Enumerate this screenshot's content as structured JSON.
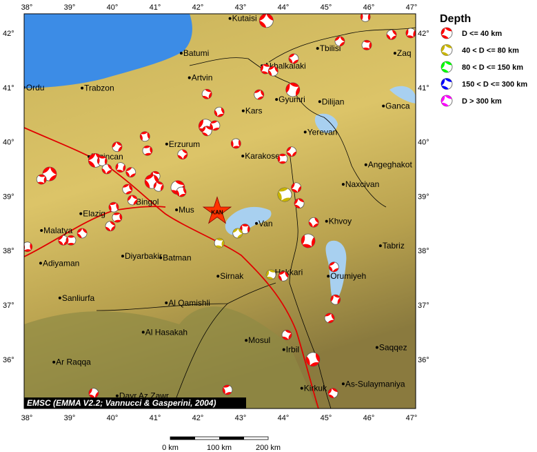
{
  "legend": {
    "title": "Depth",
    "items": [
      {
        "label": "D <= 40 km",
        "color": "#ff0000"
      },
      {
        "label": "40 < D <= 80 km",
        "color": "#c8b400"
      },
      {
        "label": "80 < D <= 150 km",
        "color": "#00ff00"
      },
      {
        "label": "150 < D <= 300 km",
        "color": "#0000ff"
      },
      {
        "label": "D > 300 km",
        "color": "#ff00ff"
      }
    ]
  },
  "credit": "EMSC (EMMA V2.2; Vannucci & Gasperini, 2004)",
  "lon_ticks": [
    "38°",
    "39°",
    "40°",
    "41°",
    "42°",
    "43°",
    "44°",
    "45°",
    "46°",
    "47°"
  ],
  "lat_ticks": [
    "42°",
    "41°",
    "40°",
    "39°",
    "38°",
    "37°",
    "36°"
  ],
  "scale_bar": {
    "labels": [
      "0 km",
      "100 km",
      "200 km"
    ]
  },
  "epicenter": {
    "label": "KAN",
    "lon": 42.5,
    "lat": 38.72,
    "color": "#ff3300"
  },
  "cities": [
    {
      "name": "Kutaisi",
      "lon": 42.8,
      "lat": 42.27
    },
    {
      "name": "Batumi",
      "lon": 41.66,
      "lat": 41.63
    },
    {
      "name": "Artvin",
      "lon": 41.85,
      "lat": 41.18
    },
    {
      "name": "Akhalkalaki",
      "lon": 43.55,
      "lat": 41.4
    },
    {
      "name": "Tbilisi",
      "lon": 44.85,
      "lat": 41.72
    },
    {
      "name": "Zaq",
      "lon": 46.66,
      "lat": 41.63
    },
    {
      "name": "Ordu",
      "lon": 37.98,
      "lat": 41.0
    },
    {
      "name": "Trabzon",
      "lon": 39.34,
      "lat": 40.99
    },
    {
      "name": "Kars",
      "lon": 43.11,
      "lat": 40.57
    },
    {
      "name": "Gyumri",
      "lon": 43.89,
      "lat": 40.78
    },
    {
      "name": "Dilijan",
      "lon": 44.9,
      "lat": 40.74
    },
    {
      "name": "Ganca",
      "lon": 46.39,
      "lat": 40.66
    },
    {
      "name": "Yerevan",
      "lon": 44.56,
      "lat": 40.18
    },
    {
      "name": "Erzurum",
      "lon": 41.32,
      "lat": 39.96
    },
    {
      "name": "Erzincan",
      "lon": 39.5,
      "lat": 39.73
    },
    {
      "name": "Karakose",
      "lon": 43.1,
      "lat": 39.74
    },
    {
      "name": "Angeghakot",
      "lon": 45.98,
      "lat": 39.58
    },
    {
      "name": "Naxcivan",
      "lon": 45.45,
      "lat": 39.22
    },
    {
      "name": "Elazig",
      "lon": 39.31,
      "lat": 38.68
    },
    {
      "name": "Bingol",
      "lon": 40.55,
      "lat": 38.9
    },
    {
      "name": "Mus",
      "lon": 41.55,
      "lat": 38.75
    },
    {
      "name": "Van",
      "lon": 43.42,
      "lat": 38.5
    },
    {
      "name": "Khvoy",
      "lon": 45.06,
      "lat": 38.54
    },
    {
      "name": "Malatya",
      "lon": 38.39,
      "lat": 38.37
    },
    {
      "name": "Tabriz",
      "lon": 46.32,
      "lat": 38.09
    },
    {
      "name": "Adiyaman",
      "lon": 38.37,
      "lat": 37.77
    },
    {
      "name": "Diyarbakir",
      "lon": 40.29,
      "lat": 37.9
    },
    {
      "name": "Batman",
      "lon": 41.18,
      "lat": 37.87
    },
    {
      "name": "Sirnak",
      "lon": 42.52,
      "lat": 37.53
    },
    {
      "name": "Hakkari",
      "lon": 43.8,
      "lat": 37.6
    },
    {
      "name": "Orumiyeh",
      "lon": 45.1,
      "lat": 37.53
    },
    {
      "name": "Sanliurfa",
      "lon": 38.82,
      "lat": 37.13
    },
    {
      "name": "Al Qamishli",
      "lon": 41.31,
      "lat": 37.04
    },
    {
      "name": "Al Hasakah",
      "lon": 40.77,
      "lat": 36.5
    },
    {
      "name": "Mosul",
      "lon": 43.18,
      "lat": 36.35
    },
    {
      "name": "Irbil",
      "lon": 44.06,
      "lat": 36.18
    },
    {
      "name": "Saqqez",
      "lon": 46.24,
      "lat": 36.22
    },
    {
      "name": "Ar Raqqa",
      "lon": 38.68,
      "lat": 35.95
    },
    {
      "name": "As-Sulaymaniya",
      "lon": 45.45,
      "lat": 35.55
    },
    {
      "name": "Kirkuk",
      "lon": 44.48,
      "lat": 35.47
    },
    {
      "name": "Dayr Az Zawr",
      "lon": 40.16,
      "lat": 35.33
    }
  ],
  "mechanisms": [
    {
      "lon": 43.65,
      "lat": 42.23,
      "depth": 0,
      "big": true
    },
    {
      "lon": 45.97,
      "lat": 42.3,
      "depth": 0
    },
    {
      "lon": 45.37,
      "lat": 41.85,
      "depth": 0
    },
    {
      "lon": 46.0,
      "lat": 41.78,
      "depth": 0
    },
    {
      "lon": 46.58,
      "lat": 41.97,
      "depth": 0
    },
    {
      "lon": 47.03,
      "lat": 42.0,
      "depth": 0
    },
    {
      "lon": 44.29,
      "lat": 41.53,
      "depth": 0
    },
    {
      "lon": 43.63,
      "lat": 41.34,
      "depth": 0
    },
    {
      "lon": 43.81,
      "lat": 41.3,
      "depth": 0
    },
    {
      "lon": 44.27,
      "lat": 40.96,
      "depth": 0,
      "big": true
    },
    {
      "lon": 43.48,
      "lat": 40.87,
      "depth": 0
    },
    {
      "lon": 42.26,
      "lat": 40.88,
      "depth": 0
    },
    {
      "lon": 42.55,
      "lat": 40.55,
      "depth": 0
    },
    {
      "lon": 42.23,
      "lat": 40.29,
      "depth": 0,
      "big": true
    },
    {
      "lon": 42.45,
      "lat": 40.3,
      "depth": 0
    },
    {
      "lon": 42.26,
      "lat": 40.2,
      "depth": 0
    },
    {
      "lon": 40.81,
      "lat": 40.1,
      "depth": 0
    },
    {
      "lon": 40.16,
      "lat": 39.91,
      "depth": 0
    },
    {
      "lon": 40.87,
      "lat": 39.84,
      "depth": 0
    },
    {
      "lon": 41.69,
      "lat": 39.77,
      "depth": 0
    },
    {
      "lon": 42.94,
      "lat": 39.97,
      "depth": 0
    },
    {
      "lon": 44.24,
      "lat": 39.82,
      "depth": 0
    },
    {
      "lon": 44.03,
      "lat": 39.69,
      "depth": 0
    },
    {
      "lon": 39.65,
      "lat": 39.66,
      "depth": 0,
      "big": true
    },
    {
      "lon": 39.81,
      "lat": 39.65,
      "depth": 0
    },
    {
      "lon": 38.58,
      "lat": 39.41,
      "depth": 0,
      "big": true
    },
    {
      "lon": 38.39,
      "lat": 39.31,
      "depth": 0
    },
    {
      "lon": 39.92,
      "lat": 39.5,
      "depth": 0
    },
    {
      "lon": 40.24,
      "lat": 39.53,
      "depth": 0
    },
    {
      "lon": 40.48,
      "lat": 39.44,
      "depth": 0
    },
    {
      "lon": 41.05,
      "lat": 39.37,
      "depth": 0
    },
    {
      "lon": 40.97,
      "lat": 39.27,
      "depth": 0,
      "big": true
    },
    {
      "lon": 41.13,
      "lat": 39.18,
      "depth": 0
    },
    {
      "lon": 40.4,
      "lat": 39.13,
      "depth": 0
    },
    {
      "lon": 41.58,
      "lat": 39.16,
      "depth": 0,
      "big": true
    },
    {
      "lon": 41.66,
      "lat": 39.08,
      "depth": 0
    },
    {
      "lon": 44.35,
      "lat": 39.16,
      "depth": 0
    },
    {
      "lon": 44.08,
      "lat": 39.03,
      "depth": 1,
      "big": true
    },
    {
      "lon": 44.42,
      "lat": 38.87,
      "depth": 0
    },
    {
      "lon": 40.08,
      "lat": 38.8,
      "depth": 0
    },
    {
      "lon": 40.52,
      "lat": 38.93,
      "depth": 0
    },
    {
      "lon": 40.16,
      "lat": 38.61,
      "depth": 0
    },
    {
      "lon": 40.0,
      "lat": 38.45,
      "depth": 0
    },
    {
      "lon": 38.06,
      "lat": 38.07,
      "depth": 0
    },
    {
      "lon": 38.9,
      "lat": 38.19,
      "depth": 0
    },
    {
      "lon": 39.08,
      "lat": 38.19,
      "depth": 0
    },
    {
      "lon": 39.34,
      "lat": 38.32,
      "depth": 0
    },
    {
      "lon": 43.15,
      "lat": 38.4,
      "depth": 0
    },
    {
      "lon": 42.98,
      "lat": 38.32,
      "depth": 1
    },
    {
      "lon": 42.55,
      "lat": 38.14,
      "depth": 1
    },
    {
      "lon": 44.76,
      "lat": 38.52,
      "depth": 0
    },
    {
      "lon": 44.63,
      "lat": 38.18,
      "depth": 0,
      "big": true
    },
    {
      "lon": 45.23,
      "lat": 37.7,
      "depth": 0
    },
    {
      "lon": 43.76,
      "lat": 37.56,
      "depth": 1
    },
    {
      "lon": 44.05,
      "lat": 37.53,
      "depth": 0
    },
    {
      "lon": 45.27,
      "lat": 37.1,
      "depth": 0
    },
    {
      "lon": 45.13,
      "lat": 36.76,
      "depth": 0
    },
    {
      "lon": 44.13,
      "lat": 36.45,
      "depth": 0
    },
    {
      "lon": 44.74,
      "lat": 36.0,
      "depth": 0,
      "big": true
    },
    {
      "lon": 39.61,
      "lat": 35.38,
      "depth": 0
    },
    {
      "lon": 42.74,
      "lat": 35.44,
      "depth": 0
    },
    {
      "lon": 45.21,
      "lat": 35.38,
      "depth": 0
    }
  ],
  "colors": {
    "sea": "#3c8ce6",
    "lake": "#a8d0f0",
    "land": "#d8bf62",
    "fault": "#e00000"
  }
}
